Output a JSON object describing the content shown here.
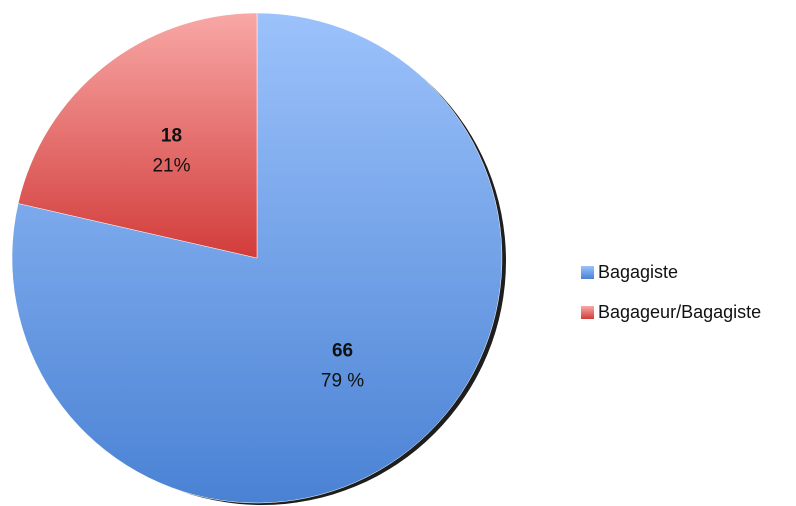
{
  "chart_data": {
    "type": "pie",
    "categories": [
      "Bagagiste",
      "Bagageur/Bagagiste"
    ],
    "values": [
      66,
      18
    ],
    "percent_labels": [
      "79 %",
      "21%"
    ],
    "colors": [
      "#6f9fe6",
      "#e06866"
    ],
    "legend_position": "right"
  }
}
